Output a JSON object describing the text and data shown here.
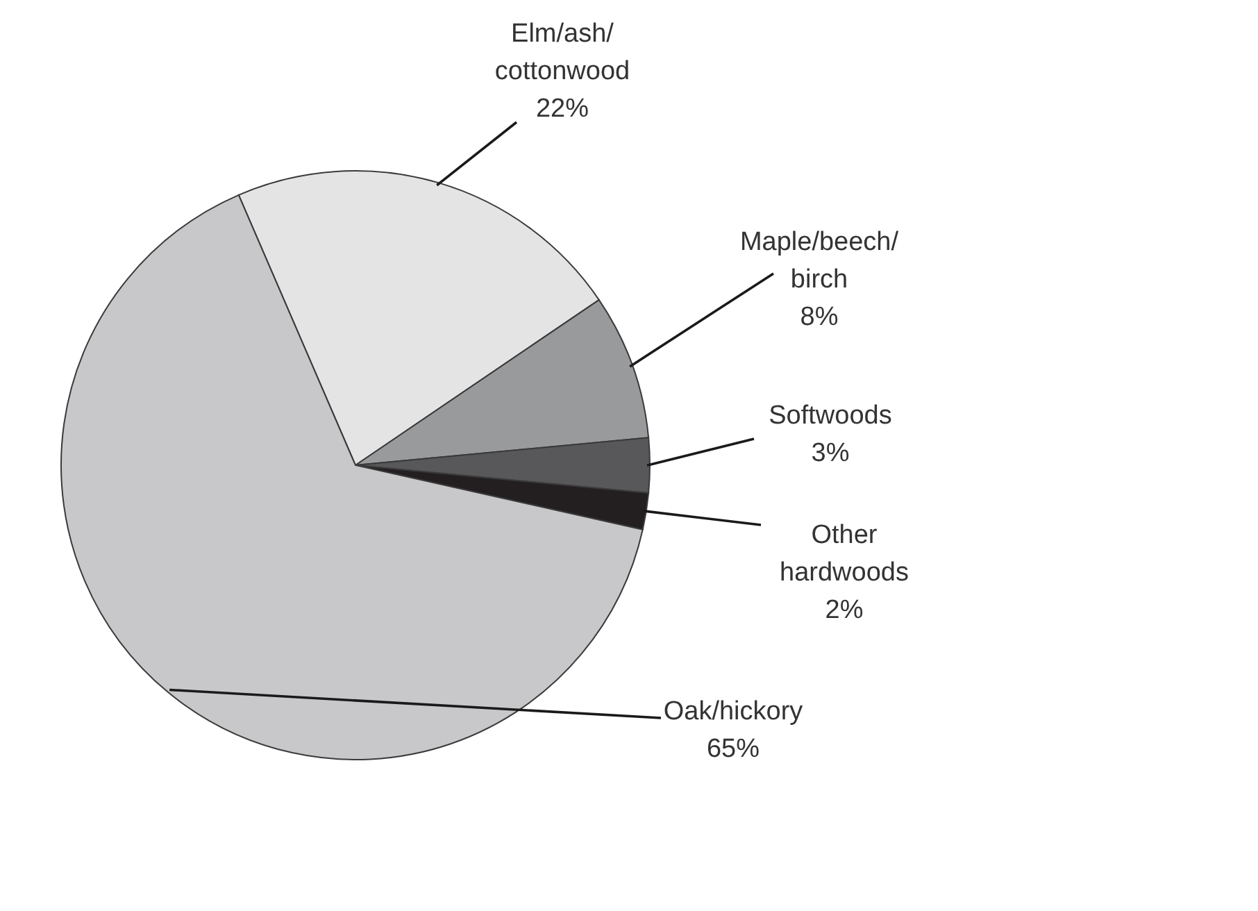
{
  "chart_data": {
    "type": "pie",
    "categories": [
      "Elm/ash/cottonwood",
      "Maple/beech/birch",
      "Softwoods",
      "Other hardwoods",
      "Oak/hickory"
    ],
    "values": [
      22,
      8,
      3,
      2,
      65
    ],
    "value_labels": [
      "22%",
      "8%",
      "3%",
      "2%",
      "65%"
    ],
    "colors": [
      "#e4e4e4",
      "#999a9c",
      "#58585a",
      "#231f20",
      "#c8c8ca"
    ]
  }
}
